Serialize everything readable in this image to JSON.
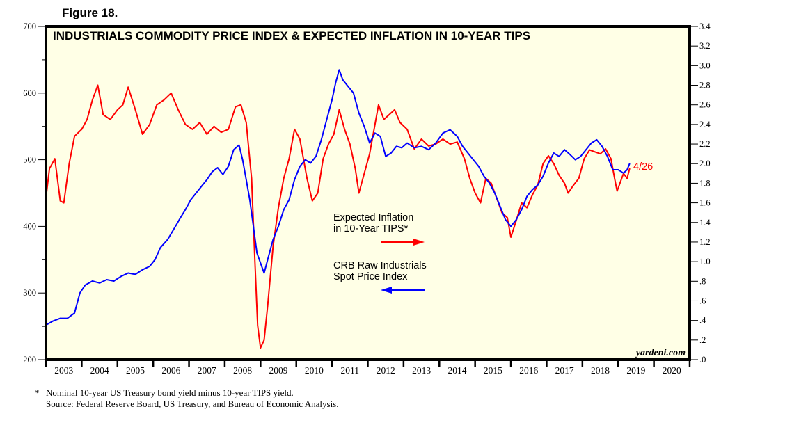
{
  "figure_label": "Figure 18.",
  "watermark": "yardeni.com",
  "footnotes": {
    "marker": "*",
    "line1": "Nominal 10-year US Treasury bond yield minus 10-year TIPS yield.",
    "line2": "Source: Federal Reserve Board, US Treasury, and Bureau of Economic Analysis."
  },
  "legend": {
    "inflation_line1": "Expected Inflation",
    "inflation_line2": "in 10-Year TIPS*",
    "crb_line1": "CRB Raw Industrials",
    "crb_line2": "Spot Price Index"
  },
  "end_label": "4/26",
  "colors": {
    "plot_bg": "#ffffe6",
    "inflation": "#ff0000",
    "crb": "#0000ff"
  },
  "chart_data": {
    "type": "line",
    "title": "INDUSTRIALS COMMODITY PRICE INDEX & EXPECTED INFLATION IN 10-YEAR TIPS",
    "xlabel": "",
    "xlim": [
      2003,
      2021
    ],
    "x_tick_labels": [
      "2003",
      "2004",
      "2005",
      "2006",
      "2007",
      "2008",
      "2009",
      "2010",
      "2011",
      "2012",
      "2013",
      "2014",
      "2015",
      "2016",
      "2017",
      "2018",
      "2019",
      "2020"
    ],
    "y_left": {
      "label": "",
      "lim": [
        200,
        700
      ],
      "ticks": [
        200,
        300,
        400,
        500,
        600,
        700
      ],
      "tick_labels": [
        "200",
        "300",
        "400",
        "500",
        "600",
        "700"
      ]
    },
    "y_right": {
      "label": "",
      "lim": [
        0,
        3.4
      ],
      "ticks": [
        0,
        0.2,
        0.4,
        0.6,
        0.8,
        1.0,
        1.2,
        1.4,
        1.6,
        1.8,
        2.0,
        2.2,
        2.4,
        2.6,
        2.8,
        3.0,
        3.2,
        3.4
      ],
      "tick_labels": [
        ".0",
        ".2",
        ".4",
        ".6",
        ".8",
        "1.0",
        "1.2",
        "1.4",
        "1.6",
        "1.8",
        "2.0",
        "2.2",
        "2.4",
        "2.6",
        "2.8",
        "3.0",
        "3.2",
        "3.4"
      ]
    },
    "grid": false,
    "legend_position": "center",
    "series": [
      {
        "name": "Expected Inflation in 10-Year TIPS*",
        "axis": "right",
        "color": "#ff0000",
        "x": [
          2003.0,
          2003.1,
          2003.25,
          2003.4,
          2003.5,
          2003.65,
          2003.8,
          2004.0,
          2004.15,
          2004.3,
          2004.45,
          2004.6,
          2004.8,
          2005.0,
          2005.15,
          2005.3,
          2005.5,
          2005.7,
          2005.9,
          2006.1,
          2006.3,
          2006.5,
          2006.7,
          2006.9,
          2007.1,
          2007.3,
          2007.5,
          2007.7,
          2007.9,
          2008.1,
          2008.3,
          2008.45,
          2008.6,
          2008.75,
          2008.85,
          2008.92,
          2009.0,
          2009.1,
          2009.2,
          2009.35,
          2009.5,
          2009.65,
          2009.8,
          2009.95,
          2010.1,
          2010.3,
          2010.45,
          2010.6,
          2010.75,
          2010.9,
          2011.05,
          2011.2,
          2011.35,
          2011.5,
          2011.65,
          2011.75,
          2011.9,
          2012.05,
          2012.2,
          2012.3,
          2012.45,
          2012.6,
          2012.75,
          2012.9,
          2013.1,
          2013.3,
          2013.5,
          2013.7,
          2013.9,
          2014.1,
          2014.3,
          2014.5,
          2014.7,
          2014.85,
          2015.0,
          2015.15,
          2015.3,
          2015.45,
          2015.6,
          2015.75,
          2015.9,
          2016.0,
          2016.15,
          2016.3,
          2016.45,
          2016.6,
          2016.75,
          2016.9,
          2017.05,
          2017.2,
          2017.35,
          2017.5,
          2017.6,
          2017.75,
          2017.9,
          2018.05,
          2018.2,
          2018.35,
          2018.5,
          2018.65,
          2018.8,
          2018.9,
          2018.97,
          2019.05,
          2019.15,
          2019.25,
          2019.32
        ],
        "values": [
          1.65,
          1.95,
          2.05,
          1.62,
          1.6,
          2.0,
          2.28,
          2.35,
          2.45,
          2.65,
          2.8,
          2.5,
          2.45,
          2.55,
          2.6,
          2.78,
          2.55,
          2.3,
          2.4,
          2.6,
          2.65,
          2.72,
          2.55,
          2.4,
          2.35,
          2.42,
          2.3,
          2.38,
          2.32,
          2.35,
          2.58,
          2.6,
          2.42,
          1.85,
          0.95,
          0.35,
          0.12,
          0.2,
          0.55,
          1.15,
          1.55,
          1.85,
          2.05,
          2.35,
          2.25,
          1.85,
          1.62,
          1.7,
          2.05,
          2.2,
          2.3,
          2.55,
          2.35,
          2.2,
          1.95,
          1.7,
          1.9,
          2.1,
          2.4,
          2.6,
          2.45,
          2.5,
          2.55,
          2.42,
          2.35,
          2.15,
          2.25,
          2.18,
          2.2,
          2.25,
          2.2,
          2.22,
          2.05,
          1.85,
          1.7,
          1.6,
          1.85,
          1.8,
          1.65,
          1.5,
          1.45,
          1.25,
          1.42,
          1.6,
          1.55,
          1.68,
          1.78,
          2.0,
          2.08,
          2.0,
          1.88,
          1.8,
          1.7,
          1.78,
          1.85,
          2.05,
          2.14,
          2.12,
          2.1,
          2.15,
          2.05,
          1.85,
          1.72,
          1.8,
          1.9,
          1.85,
          1.95
        ]
      },
      {
        "name": "CRB Raw Industrials Spot Price Index",
        "axis": "left",
        "color": "#0000ff",
        "x": [
          2003.0,
          2003.2,
          2003.4,
          2003.6,
          2003.8,
          2003.95,
          2004.1,
          2004.3,
          2004.5,
          2004.7,
          2004.9,
          2005.1,
          2005.3,
          2005.5,
          2005.7,
          2005.9,
          2006.05,
          2006.2,
          2006.4,
          2006.6,
          2006.75,
          2006.9,
          2007.05,
          2007.2,
          2007.35,
          2007.5,
          2007.65,
          2007.8,
          2007.95,
          2008.1,
          2008.25,
          2008.4,
          2008.5,
          2008.6,
          2008.7,
          2008.8,
          2008.9,
          2009.0,
          2009.1,
          2009.2,
          2009.35,
          2009.5,
          2009.65,
          2009.8,
          2009.95,
          2010.1,
          2010.25,
          2010.4,
          2010.55,
          2010.7,
          2010.85,
          2011.0,
          2011.1,
          2011.2,
          2011.3,
          2011.45,
          2011.6,
          2011.75,
          2011.9,
          2012.05,
          2012.2,
          2012.35,
          2012.5,
          2012.65,
          2012.8,
          2012.95,
          2013.1,
          2013.3,
          2013.5,
          2013.7,
          2013.9,
          2014.1,
          2014.3,
          2014.5,
          2014.65,
          2014.8,
          2014.95,
          2015.1,
          2015.25,
          2015.4,
          2015.55,
          2015.7,
          2015.85,
          2016.0,
          2016.15,
          2016.3,
          2016.45,
          2016.6,
          2016.75,
          2016.9,
          2017.05,
          2017.2,
          2017.35,
          2017.5,
          2017.65,
          2017.8,
          2017.95,
          2018.1,
          2018.25,
          2018.4,
          2018.55,
          2018.7,
          2018.85,
          2019.0,
          2019.15,
          2019.25,
          2019.32
        ],
        "values": [
          252,
          258,
          262,
          262,
          270,
          300,
          312,
          318,
          315,
          320,
          318,
          325,
          330,
          328,
          335,
          340,
          350,
          368,
          380,
          398,
          412,
          425,
          440,
          450,
          460,
          470,
          482,
          488,
          478,
          490,
          515,
          522,
          500,
          470,
          440,
          400,
          360,
          345,
          330,
          350,
          380,
          400,
          425,
          440,
          470,
          490,
          500,
          495,
          505,
          530,
          560,
          590,
          615,
          635,
          620,
          610,
          600,
          570,
          550,
          525,
          540,
          535,
          505,
          510,
          520,
          518,
          525,
          518,
          520,
          515,
          525,
          540,
          545,
          535,
          520,
          510,
          500,
          490,
          475,
          465,
          450,
          430,
          410,
          400,
          410,
          425,
          445,
          455,
          462,
          475,
          495,
          510,
          505,
          515,
          508,
          500,
          505,
          515,
          525,
          530,
          520,
          505,
          485,
          485,
          480,
          485,
          494
        ]
      }
    ],
    "annotations": [
      "4/26",
      "yardeni.com"
    ]
  }
}
